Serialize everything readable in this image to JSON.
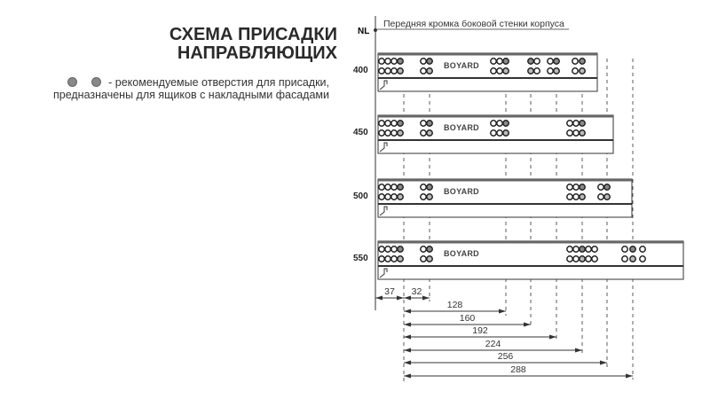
{
  "title": {
    "line1": "СХЕМА ПРИСАДКИ",
    "line2": "НАПРАВЛЯЮЩИХ"
  },
  "legend": {
    "icon": "grey-hole-icon",
    "separator": "-",
    "line1": "рекомендуемые отверстия для присадки,",
    "line2": "предназначены для ящиков с накладными фасадами"
  },
  "reference": {
    "label": "NL",
    "caption": "Передняя кромка боковой стенки корпуса"
  },
  "rails": [
    {
      "length": "400",
      "logo": "BOYARD"
    },
    {
      "length": "450",
      "logo": "BOYARD"
    },
    {
      "length": "500",
      "logo": "BOYARD"
    },
    {
      "length": "550",
      "logo": "BOYARD"
    }
  ],
  "dimensions": [
    "37",
    "32",
    "128",
    "160",
    "192",
    "224",
    "256",
    "288"
  ],
  "colors": {
    "line": "#333333",
    "hole_recommended": "#8a8a8a",
    "rail_bg": "#ffffff"
  }
}
